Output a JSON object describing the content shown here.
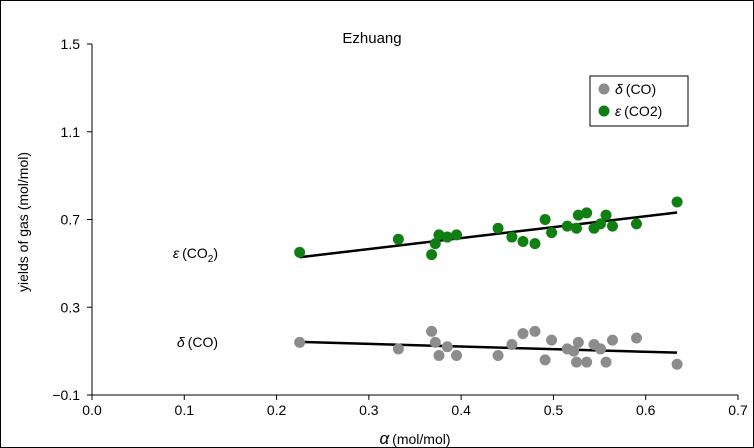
{
  "chart_data": {
    "type": "scatter",
    "title": "Ezhuang",
    "xlabel": "α (mol/mol)",
    "ylabel": "yields of gas (mol/mol)",
    "xlim": [
      0.0,
      0.7
    ],
    "ylim": [
      -0.1,
      1.5
    ],
    "xticks": [
      "0.0",
      "0.1",
      "0.2",
      "0.3",
      "0.4",
      "0.5",
      "0.6",
      "0.7"
    ],
    "yticks": [
      "−0.1",
      "0.3",
      "0.7",
      "1.1",
      "1.5"
    ],
    "legend_position": "top-right",
    "grid": false,
    "series": [
      {
        "name": "δ (CO)",
        "color": "#8c8c8c",
        "x": [
          0.225,
          0.332,
          0.368,
          0.372,
          0.376,
          0.385,
          0.395,
          0.44,
          0.455,
          0.467,
          0.48,
          0.491,
          0.498,
          0.515,
          0.522,
          0.525,
          0.527,
          0.536,
          0.544,
          0.551,
          0.557,
          0.564,
          0.59,
          0.634
        ],
        "y": [
          0.14,
          0.11,
          0.19,
          0.14,
          0.08,
          0.12,
          0.08,
          0.08,
          0.13,
          0.18,
          0.19,
          0.06,
          0.15,
          0.11,
          0.1,
          0.05,
          0.14,
          0.05,
          0.13,
          0.11,
          0.05,
          0.15,
          0.16,
          0.04
        ]
      },
      {
        "name": "ε (CO2)",
        "color": "#0f7f12",
        "x": [
          0.225,
          0.332,
          0.368,
          0.372,
          0.376,
          0.385,
          0.395,
          0.44,
          0.455,
          0.467,
          0.48,
          0.491,
          0.498,
          0.515,
          0.525,
          0.527,
          0.536,
          0.544,
          0.551,
          0.557,
          0.564,
          0.59,
          0.634
        ],
        "y": [
          0.55,
          0.61,
          0.54,
          0.59,
          0.63,
          0.62,
          0.63,
          0.66,
          0.62,
          0.6,
          0.59,
          0.7,
          0.64,
          0.67,
          0.66,
          0.72,
          0.73,
          0.66,
          0.68,
          0.72,
          0.67,
          0.68,
          0.78
        ]
      }
    ],
    "trendlines": [
      {
        "series": "δ (CO)",
        "x": [
          0.225,
          0.634
        ],
        "y": [
          0.142,
          0.093
        ]
      },
      {
        "series": "ε (CO2)",
        "x": [
          0.225,
          0.634
        ],
        "y": [
          0.528,
          0.732
        ]
      }
    ],
    "annotations": [
      {
        "text": "ε (CO2)",
        "near": "left of green trendline"
      },
      {
        "text": "δ (CO)",
        "near": "left of gray trendline"
      }
    ]
  }
}
